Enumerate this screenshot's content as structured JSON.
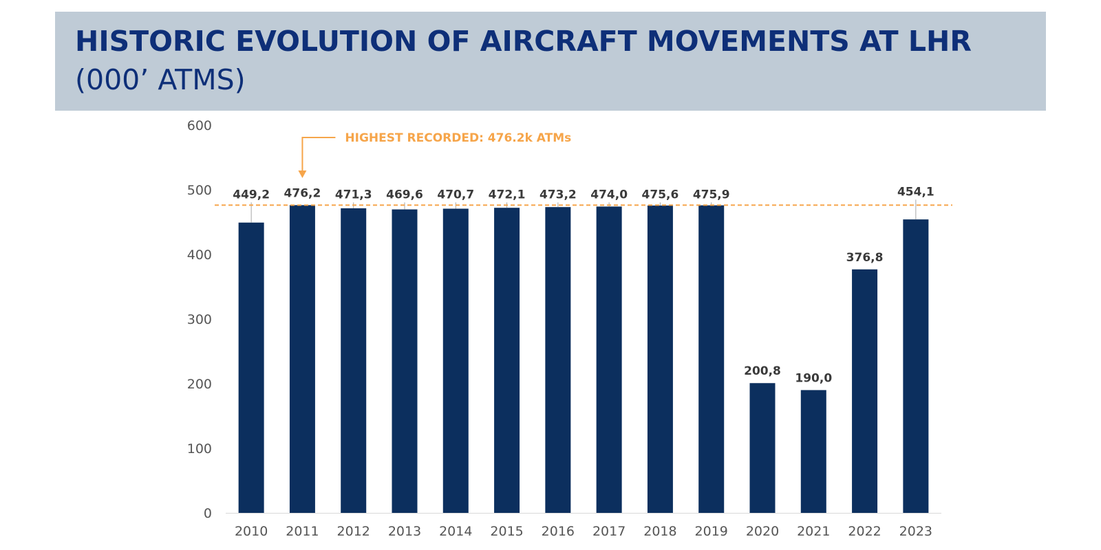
{
  "header": {
    "title_line1": "HISTORIC EVOLUTION OF AIRCRAFT MOVEMENTS AT LHR",
    "title_line2": "(000’ ATMS)"
  },
  "colors": {
    "bar": "#0c2f5e",
    "banner": "#bfcbd6",
    "title": "#0e2f78",
    "annotation": "#f6a54a",
    "axis_text": "#555555"
  },
  "chart_data": {
    "type": "bar",
    "title": "HISTORIC EVOLUTION OF AIRCRAFT MOVEMENTS AT LHR (000’ ATMS)",
    "categories": [
      "2010",
      "2011",
      "2012",
      "2013",
      "2014",
      "2015",
      "2016",
      "2017",
      "2018",
      "2019",
      "2020",
      "2021",
      "2022",
      "2023"
    ],
    "values": [
      449.2,
      476.2,
      471.3,
      469.6,
      470.7,
      472.1,
      473.2,
      474.0,
      475.6,
      475.9,
      200.8,
      190.0,
      376.8,
      454.1
    ],
    "value_labels": [
      "449,2",
      "476,2",
      "471,3",
      "469,6",
      "470,7",
      "472,1",
      "473,2",
      "474,0",
      "475,6",
      "475,9",
      "200,8",
      "190,0",
      "376,8",
      "454,1"
    ],
    "xlabel": "",
    "ylabel": "",
    "ylim": [
      0,
      600
    ],
    "yticks": [
      0,
      100,
      200,
      300,
      400,
      500,
      600
    ],
    "grid": false,
    "reference_line": {
      "value": 476.2,
      "style": "dashed"
    },
    "annotation": {
      "text": "HIGHEST RECORDED: 476.2k ATMs",
      "points_to": "2011"
    }
  }
}
